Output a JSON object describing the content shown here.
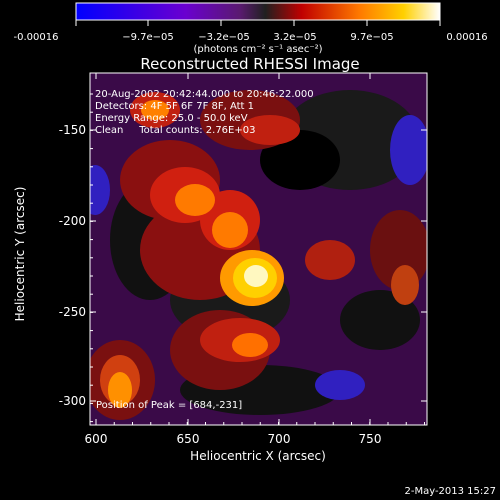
{
  "colorbar": {
    "tick_labels": [
      "-0.00016",
      "−9.7e−05",
      "−3.2e−05",
      "3.2e−05",
      "9.7e−05",
      "0.00016"
    ],
    "unit_label": "(photons cm⁻² s⁻¹ asec⁻²)",
    "range": [
      -0.00016,
      0.00016
    ]
  },
  "image": {
    "title": "Reconstructed RHESSI Image",
    "info_lines": [
      "20-Aug-2002 20:42:44.000 to 20:46:22.000",
      "Detectors: 4F 5F 6F 7F 8F, Att 1",
      "Energy Range: 25.0 - 50.0 keV",
      "Clean     Total counts: 2.76E+03"
    ],
    "peak_text": "Position of Peak = [684,-231]",
    "x_axis": {
      "label": "Heliocentric X (arcsec)",
      "ticks": [
        "600",
        "650",
        "700",
        "750"
      ],
      "range": [
        590,
        778
      ]
    },
    "y_axis": {
      "label": "Heliocentric Y (arcsec)",
      "ticks": [
        "-150",
        "-200",
        "-250",
        "-300"
      ],
      "range": [
        -312,
        -125
      ]
    },
    "peak_position": [
      684,
      -231
    ]
  },
  "footer": {
    "timestamp": "2-May-2013 15:27"
  }
}
